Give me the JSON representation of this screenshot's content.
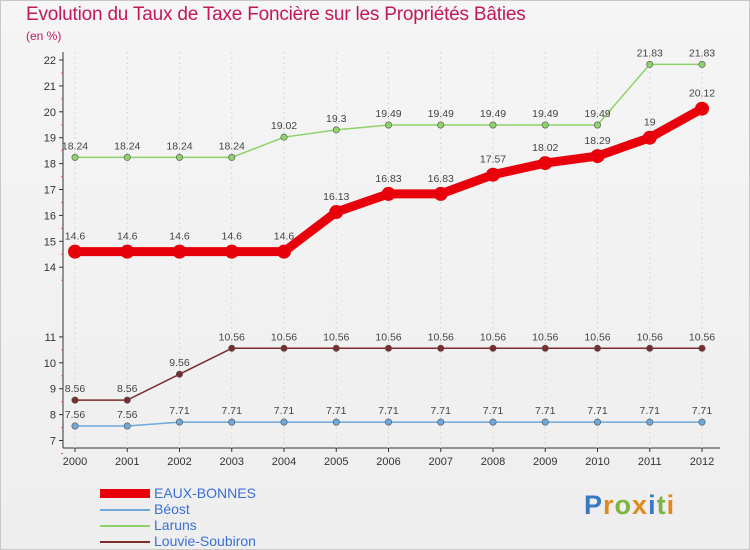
{
  "chart_data": {
    "type": "line",
    "title": "Evolution du Taux de Taxe Foncière sur les Propriétés Bâties",
    "unit_label": "(en %)",
    "x": [
      "2000",
      "2001",
      "2002",
      "2003",
      "2004",
      "2005",
      "2006",
      "2007",
      "2008",
      "2009",
      "2010",
      "2011",
      "2012"
    ],
    "y_ticks": [
      "7",
      "8",
      "9",
      "10",
      "11",
      "14",
      "15",
      "16",
      "17",
      "18",
      "19",
      "20",
      "21",
      "22"
    ],
    "axis_note": "broken y-axis: lower band 7–11, upper band 14–22",
    "series": [
      {
        "name": "EAUX-BONNES",
        "color": "#e8000b",
        "values": [
          14.6,
          14.6,
          14.6,
          14.6,
          14.6,
          16.13,
          16.83,
          16.83,
          17.57,
          18.02,
          18.29,
          19,
          20.12
        ],
        "labels": [
          "14.6",
          "14.6",
          "14.6",
          "14.6",
          "14.6",
          "16.13",
          "16.83",
          "16.83",
          "17.57",
          "18.02",
          "18.29",
          "19",
          "20.12"
        ]
      },
      {
        "name": "Béost",
        "color": "#6fa8dc",
        "values": [
          7.56,
          7.56,
          7.71,
          7.71,
          7.71,
          7.71,
          7.71,
          7.71,
          7.71,
          7.71,
          7.71,
          7.71,
          7.71
        ],
        "labels": [
          "7.56",
          "7.56",
          "7.71",
          "7.71",
          "7.71",
          "7.71",
          "7.71",
          "7.71",
          "7.71",
          "7.71",
          "7.71",
          "7.71",
          "7.71"
        ]
      },
      {
        "name": "Laruns",
        "color": "#8fd16a",
        "values": [
          18.24,
          18.24,
          18.24,
          18.24,
          19.02,
          19.3,
          19.49,
          19.49,
          19.49,
          19.49,
          19.49,
          21.83,
          21.83
        ],
        "labels": [
          "18.24",
          "18.24",
          "18.24",
          "18.24",
          "19.02",
          "19.3",
          "19.49",
          "19.49",
          "19.49",
          "19.49",
          "19.49",
          "21.83",
          "21.83"
        ]
      },
      {
        "name": "Louvie-Soubiron",
        "color": "#7b2c2c",
        "values": [
          8.56,
          8.56,
          9.56,
          10.56,
          10.56,
          10.56,
          10.56,
          10.56,
          10.56,
          10.56,
          10.56,
          10.56,
          10.56
        ],
        "labels": [
          "8.56",
          "8.56",
          "9.56",
          "10.56",
          "10.56",
          "10.56",
          "10.56",
          "10.56",
          "10.56",
          "10.56",
          "10.56",
          "10.56",
          "10.56"
        ]
      }
    ]
  },
  "logo": {
    "text": "Proxiti",
    "colors": [
      "#3b78c3",
      "#e08a1e",
      "#7cb342",
      "#e08a1e",
      "#3b78c3",
      "#7cb342",
      "#e08a1e"
    ]
  }
}
